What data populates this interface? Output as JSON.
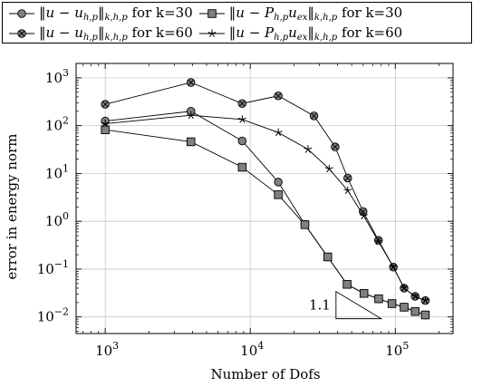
{
  "chart_data": {
    "type": "line",
    "xlabel": "Number of Dofs",
    "ylabel": "error in energy norm",
    "xscale": "log",
    "yscale": "log",
    "xlim": [
      630,
      250000
    ],
    "ylim": [
      0.0045,
      2000
    ],
    "grid": true,
    "legend_position": "top",
    "x_ticks": [
      {
        "value": 1000,
        "label": "10^3"
      },
      {
        "value": 10000,
        "label": "10^4"
      },
      {
        "value": 100000,
        "label": "10^5"
      }
    ],
    "y_ticks": [
      {
        "value": 0.01,
        "label": "10^-2"
      },
      {
        "value": 0.1,
        "label": "10^-1"
      },
      {
        "value": 1,
        "label": "10^0"
      },
      {
        "value": 10,
        "label": "10^1"
      },
      {
        "value": 100,
        "label": "10^2"
      },
      {
        "value": 1000,
        "label": "10^3"
      }
    ],
    "series": [
      {
        "name": "‖u − u_{h,p}‖_{k,h,p} for k=30",
        "marker": "circle",
        "color": "#808080",
        "x": [
          1000,
          3900,
          8800,
          15600,
          23800,
          34200,
          46500,
          60800,
          76800,
          94800,
          115000,
          137000,
          161000
        ],
        "y": [
          125,
          200,
          48,
          6.6,
          0.86,
          0.18,
          0.048,
          0.031,
          0.024,
          0.019,
          0.016,
          0.013,
          0.011
        ]
      },
      {
        "name": "‖u − P_{h,p}u_{ex}‖_{k,h,p} for k=30",
        "marker": "square",
        "color": "#808080",
        "x": [
          1000,
          3900,
          8800,
          15600,
          23800,
          34200,
          46500,
          60800,
          76800,
          94800,
          115000,
          137000,
          161000
        ],
        "y": [
          82,
          46,
          13.5,
          3.6,
          0.85,
          0.18,
          0.048,
          0.031,
          0.024,
          0.019,
          0.016,
          0.013,
          0.011
        ]
      },
      {
        "name": "‖u − u_{h,p}‖_{k,h,p} for k=60",
        "marker": "circle-x",
        "color": "#808080",
        "x": [
          1000,
          3900,
          8800,
          15600,
          27500,
          38500,
          47000,
          60000,
          76500,
          97000,
          115000,
          137000,
          161000
        ],
        "y": [
          280,
          800,
          290,
          420,
          160,
          36,
          8.0,
          1.6,
          0.4,
          0.11,
          0.04,
          0.027,
          0.022
        ]
      },
      {
        "name": "‖u − P_{h,p}u_{ex}‖_{k,h,p} for k=60",
        "marker": "star",
        "color": "#000000",
        "x": [
          1000,
          3900,
          8800,
          15600,
          25000,
          35000,
          47000,
          60500,
          76500,
          97000,
          115000,
          137000,
          161000
        ],
        "y": [
          110,
          165,
          135,
          72,
          32,
          12.5,
          4.4,
          1.3,
          0.38,
          0.11,
          0.04,
          0.027,
          0.022
        ]
      }
    ],
    "annotations": [
      {
        "text": "1.1",
        "type": "slope-triangle",
        "x_from": 39000,
        "x_to": 80000,
        "y_low": 0.0092,
        "y_high": 0.034
      }
    ]
  },
  "legend": {
    "row1": [
      {
        "marker": "circle",
        "pre": "‖",
        "var": "u − u",
        "sub": "h,p",
        "mid": "‖",
        "sub2": "k,h,p",
        "suffix": " for k=30"
      },
      {
        "marker": "square",
        "pre": "‖",
        "var": "u − P",
        "sub": "h,p",
        "var2": "u",
        "sub3": "ex",
        "mid": "‖",
        "sub2": "k,h,p",
        "suffix": " for k=30"
      }
    ],
    "row2": [
      {
        "marker": "circle-x",
        "pre": "‖",
        "var": "u − u",
        "sub": "h,p",
        "mid": "‖",
        "sub2": "k,h,p",
        "suffix": " for k=60"
      },
      {
        "marker": "star",
        "pre": "‖",
        "var": "u − P",
        "sub": "h,p",
        "var2": "u",
        "sub3": "ex",
        "mid": "‖",
        "sub2": "k,h,p",
        "suffix": " for k=60"
      }
    ]
  }
}
